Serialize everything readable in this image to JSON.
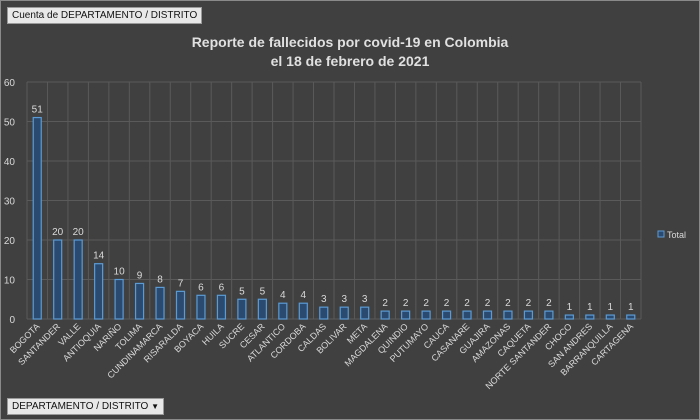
{
  "field_buttons": {
    "values_field": "Cuenta de DEPARTAMENTO / DISTRITO",
    "axis_field": "DEPARTAMENTO / DISTRITO",
    "axis_dropdown_icon": "triangle-down-icon"
  },
  "chart_data": {
    "type": "bar",
    "title_line1": "Reporte de fallecidos por covid-19 en Colombia",
    "title_line2": "el 18 de febrero de 2021",
    "categories": [
      "BOGOTA",
      "SANTANDER",
      "VALLE",
      "ANTIOQUIA",
      "NARIÑO",
      "TOLIMA",
      "CUNDINAMARCA",
      "RISARALDA",
      "BOYACA",
      "HUILA",
      "SUCRE",
      "CESAR",
      "ATLANTICO",
      "CORDOBA",
      "CALDAS",
      "BOLIVAR",
      "META",
      "MAGDALENA",
      "QUINDIO",
      "PUTUMAYO",
      "CAUCA",
      "CASANARE",
      "GUAJIRA",
      "AMAZONAS",
      "CAQUETA",
      "NORTE SANTANDER",
      "CHOCO",
      "SAN ANDRES",
      "BARRANQUILLA",
      "CARTAGENA"
    ],
    "series": [
      {
        "name": "Total",
        "values": [
          51,
          20,
          20,
          14,
          10,
          9,
          8,
          7,
          6,
          6,
          5,
          5,
          4,
          4,
          3,
          3,
          3,
          2,
          2,
          2,
          2,
          2,
          2,
          2,
          2,
          2,
          1,
          1,
          1,
          1
        ]
      }
    ],
    "ylim": [
      0,
      60
    ],
    "yticks": [
      0,
      10,
      20,
      30,
      40,
      50,
      60
    ],
    "grid": true,
    "legend_position": "right",
    "data_labels": true,
    "colors": {
      "bar_fill": "#2b4a6f",
      "bar_border": "#5b9bd5",
      "background": "#404040",
      "text": "#d9d9d9",
      "grid": "#5a5a5a"
    }
  }
}
